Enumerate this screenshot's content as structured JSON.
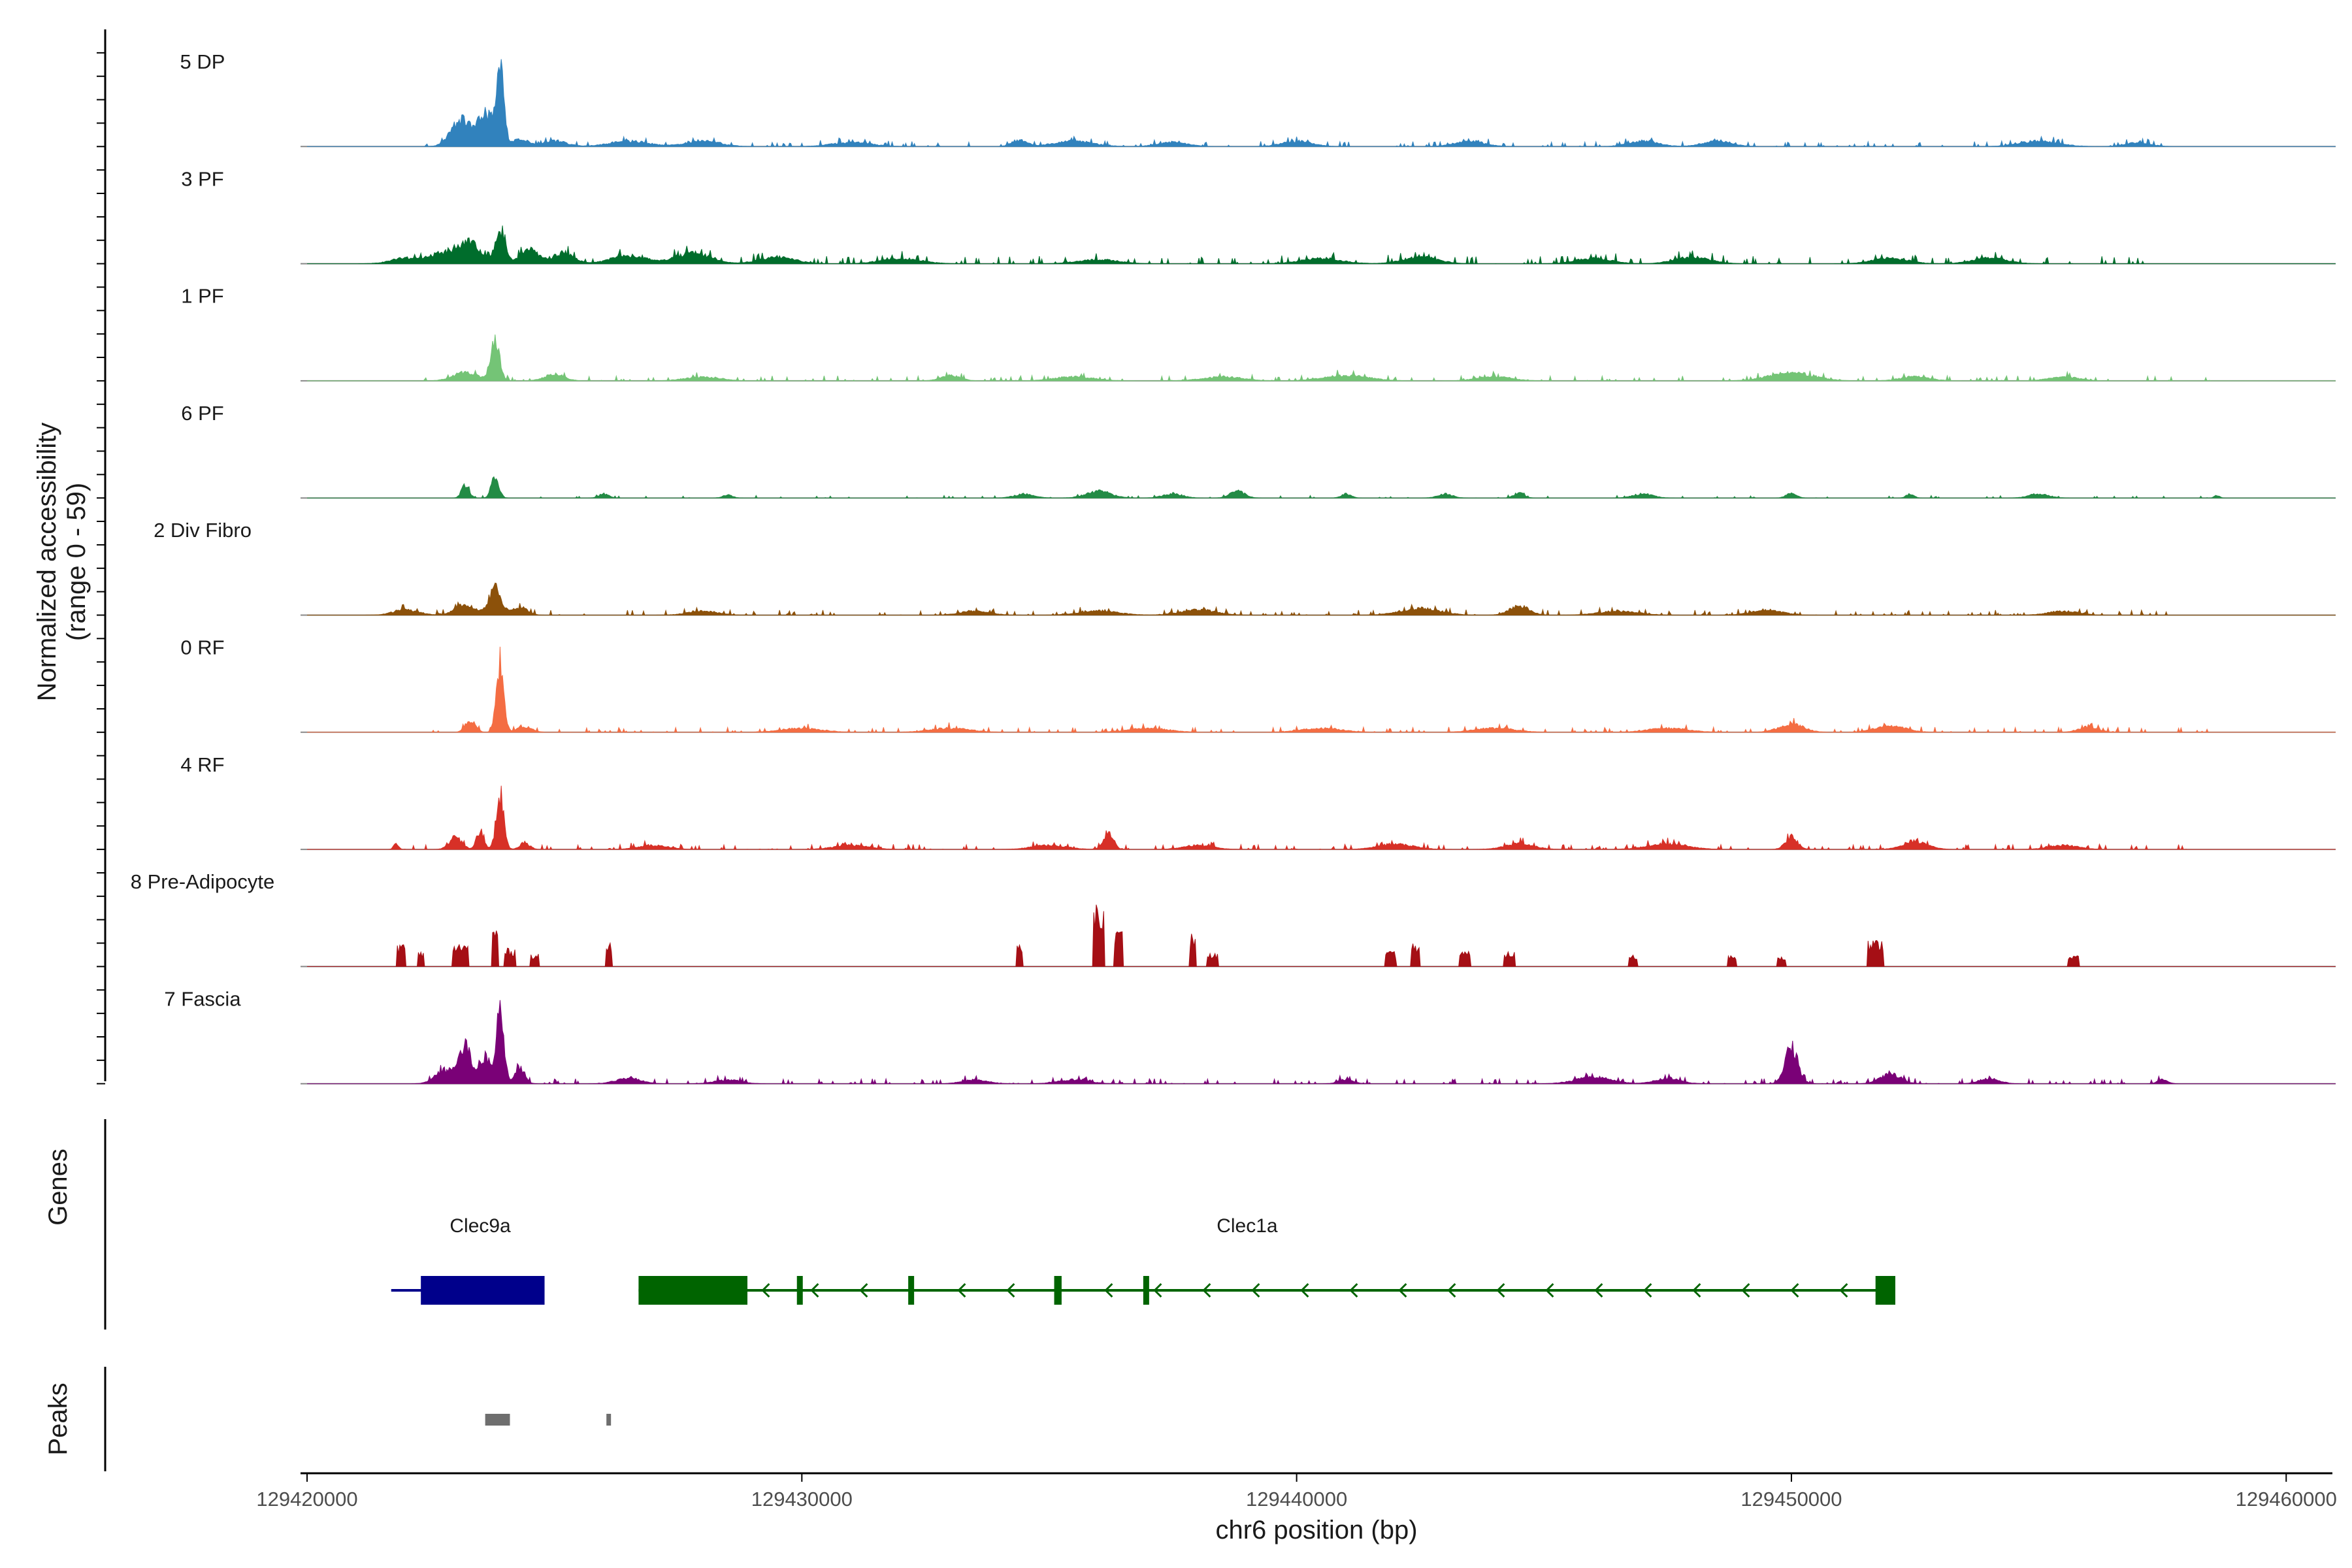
{
  "chart_data": {
    "type": "area",
    "ylabel_line1": "Normalized accessibility",
    "ylabel_line2": "(range 0 - 59)",
    "yrange": [
      0,
      59
    ],
    "xlabel": "chr6 position (bp)",
    "xlim": [
      129420000,
      129461000
    ],
    "xticks": [
      129420000,
      129430000,
      129440000,
      129450000,
      129460000
    ],
    "xtick_labels": [
      "129420000",
      "129430000",
      "129440000",
      "129450000",
      "129460000"
    ],
    "track_order": [
      "5 DP",
      "3 PF",
      "1 PF",
      "6 PF",
      "2 Div Fibro",
      "0 RF",
      "4 RF",
      "8 Pre-Adipocyte",
      "7 Fascia"
    ],
    "tracks": [
      {
        "name": "5 DP",
        "color": "#3182bd",
        "peaks": [
          [
            129423100,
            20,
            400
          ],
          [
            129423600,
            24,
            300
          ],
          [
            129423900,
            55,
            150
          ],
          [
            129424300,
            6,
            300
          ],
          [
            129425000,
            4,
            500
          ],
          [
            129426500,
            4,
            800
          ],
          [
            129428000,
            4,
            700
          ],
          [
            129431000,
            3,
            800
          ],
          [
            129434400,
            5,
            300
          ],
          [
            129435500,
            4,
            800
          ],
          [
            129437500,
            3,
            600
          ],
          [
            129440000,
            4,
            600
          ],
          [
            129443500,
            4,
            600
          ],
          [
            129447000,
            4,
            600
          ],
          [
            129448500,
            4,
            600
          ],
          [
            129455000,
            4,
            800
          ],
          [
            129457000,
            3,
            500
          ]
        ],
        "noise": 2,
        "noise_span": [
          129422300,
          129457600
        ]
      },
      {
        "name": "3 PF",
        "color": "#006d2c",
        "peaks": [
          [
            129422000,
            4,
            600
          ],
          [
            129422800,
            8,
            600
          ],
          [
            129423300,
            14,
            400
          ],
          [
            129423900,
            26,
            200
          ],
          [
            129424500,
            10,
            400
          ],
          [
            129425200,
            8,
            400
          ],
          [
            129426500,
            6,
            700
          ],
          [
            129427800,
            8,
            700
          ],
          [
            129429500,
            5,
            700
          ],
          [
            129432000,
            4,
            800
          ],
          [
            129436000,
            3,
            800
          ],
          [
            129440500,
            4,
            800
          ],
          [
            129442500,
            5,
            700
          ],
          [
            129446000,
            4,
            700
          ],
          [
            129448000,
            5,
            700
          ],
          [
            129452000,
            4,
            700
          ],
          [
            129454000,
            4,
            700
          ]
        ],
        "noise": 3,
        "noise_span": [
          129421800,
          129457100
        ]
      },
      {
        "name": "1 PF",
        "color": "#74c476",
        "peaks": [
          [
            129423200,
            6,
            500
          ],
          [
            129423800,
            28,
            180
          ],
          [
            129425000,
            5,
            400
          ],
          [
            129428000,
            3,
            700
          ],
          [
            129433000,
            4,
            400
          ],
          [
            129435500,
            3,
            800
          ],
          [
            129438500,
            3,
            800
          ],
          [
            129441000,
            4,
            900
          ],
          [
            129444000,
            3,
            700
          ],
          [
            129450000,
            6,
            900
          ],
          [
            129452500,
            3,
            600
          ],
          [
            129455500,
            3,
            600
          ]
        ],
        "noise": 2,
        "noise_span": [
          129422300,
          129458500
        ]
      },
      {
        "name": "6 PF",
        "color": "#238b45",
        "peaks": [
          [
            129423200,
            10,
            150
          ],
          [
            129423800,
            17,
            150
          ],
          [
            129426000,
            3,
            200
          ],
          [
            129428500,
            2,
            200
          ],
          [
            129434500,
            3,
            400
          ],
          [
            129436000,
            5,
            500
          ],
          [
            129437500,
            3,
            400
          ],
          [
            129438800,
            5,
            300
          ],
          [
            129441000,
            3,
            200
          ],
          [
            129443000,
            3,
            300
          ],
          [
            129444500,
            4,
            200
          ],
          [
            129447000,
            3,
            400
          ],
          [
            129450000,
            4,
            200
          ],
          [
            129452400,
            3,
            150
          ],
          [
            129455000,
            3,
            400
          ],
          [
            129458600,
            2,
            100
          ]
        ],
        "noise": 1,
        "noise_span": [
          129423000,
          129458700
        ],
        "sparse": true
      },
      {
        "name": "2 Div Fibro",
        "color": "#8c510a",
        "peaks": [
          [
            129422000,
            4,
            500
          ],
          [
            129423200,
            8,
            400
          ],
          [
            129423800,
            19,
            250
          ],
          [
            129424300,
            6,
            300
          ],
          [
            129428000,
            3,
            600
          ],
          [
            129433500,
            3,
            600
          ],
          [
            129436000,
            3,
            800
          ],
          [
            129438000,
            4,
            700
          ],
          [
            129442500,
            5,
            800
          ],
          [
            129444500,
            7,
            400
          ],
          [
            129446500,
            3,
            800
          ],
          [
            129449500,
            4,
            600
          ],
          [
            129455500,
            3,
            600
          ]
        ],
        "noise": 2,
        "noise_span": [
          129421800,
          129457800
        ]
      },
      {
        "name": "0 RF",
        "color": "#f46d43",
        "peaks": [
          [
            129423300,
            9,
            200
          ],
          [
            129423900,
            52,
            150
          ],
          [
            129424400,
            4,
            300
          ],
          [
            129430000,
            3,
            800
          ],
          [
            129433000,
            3,
            800
          ],
          [
            129437000,
            3,
            800
          ],
          [
            129440500,
            3,
            800
          ],
          [
            129444000,
            3,
            800
          ],
          [
            129447500,
            3,
            800
          ],
          [
            129450000,
            6,
            500
          ],
          [
            129452000,
            5,
            600
          ],
          [
            129456000,
            4,
            400
          ]
        ],
        "noise": 2,
        "noise_span": [
          129422300,
          129458500
        ]
      },
      {
        "name": "4 RF",
        "color": "#d73027",
        "peaks": [
          [
            129421800,
            4,
            100
          ],
          [
            129423000,
            9,
            250
          ],
          [
            129423500,
            13,
            150
          ],
          [
            129423900,
            42,
            150
          ],
          [
            129424400,
            5,
            200
          ],
          [
            129427000,
            3,
            600
          ],
          [
            129431000,
            3,
            700
          ],
          [
            129435000,
            3,
            700
          ],
          [
            129436200,
            11,
            200
          ],
          [
            129438000,
            3,
            600
          ],
          [
            129442000,
            4,
            700
          ],
          [
            129444500,
            4,
            600
          ],
          [
            129447500,
            4,
            800
          ],
          [
            129450000,
            9,
            250
          ],
          [
            129452500,
            6,
            500
          ],
          [
            129455500,
            3,
            600
          ]
        ],
        "noise": 2,
        "noise_span": [
          129421800,
          129458000
        ]
      },
      {
        "name": "8 Pre-Adipocyte",
        "color": "#a50f15",
        "peaks": [
          [
            129421900,
            14,
            150
          ],
          [
            129422300,
            9,
            100
          ],
          [
            129423100,
            14,
            250
          ],
          [
            129423800,
            24,
            120
          ],
          [
            129424100,
            11,
            200
          ],
          [
            129424600,
            8,
            150
          ],
          [
            129426100,
            14,
            120
          ],
          [
            129434400,
            14,
            100
          ],
          [
            129436000,
            40,
            180
          ],
          [
            129436400,
            22,
            150
          ],
          [
            129437900,
            20,
            100
          ],
          [
            129438300,
            8,
            200
          ],
          [
            129441900,
            9,
            200
          ],
          [
            129442400,
            14,
            150
          ],
          [
            129443400,
            9,
            200
          ],
          [
            129444300,
            9,
            200
          ],
          [
            129446800,
            7,
            150
          ],
          [
            129448800,
            7,
            150
          ],
          [
            129449800,
            7,
            150
          ],
          [
            129451700,
            16,
            250
          ],
          [
            129455700,
            7,
            200
          ]
        ],
        "noise": 0,
        "noise_span": [
          129421800,
          129458200
        ],
        "blocky": true
      },
      {
        "name": "7 Fascia",
        "color": "#7a0177",
        "peaks": [
          [
            129422800,
            10,
            400
          ],
          [
            129423200,
            28,
            250
          ],
          [
            129423600,
            20,
            200
          ],
          [
            129423900,
            59,
            150
          ],
          [
            129424300,
            12,
            200
          ],
          [
            129426500,
            4,
            500
          ],
          [
            129428500,
            3,
            500
          ],
          [
            129433500,
            3,
            500
          ],
          [
            129435500,
            3,
            600
          ],
          [
            129441000,
            3,
            300
          ],
          [
            129446000,
            5,
            700
          ],
          [
            129447500,
            4,
            500
          ],
          [
            129450000,
            28,
            250
          ],
          [
            129452000,
            7,
            400
          ],
          [
            129454000,
            4,
            400
          ],
          [
            129457500,
            3,
            200
          ]
        ],
        "noise": 2,
        "noise_span": [
          129422400,
          129457600
        ]
      }
    ]
  },
  "panels": {
    "genes_title": "Genes",
    "peaks_title": "Peaks"
  },
  "genes": [
    {
      "name": "Clec9a",
      "strand": "+",
      "color": "#00008b",
      "start": 129421700,
      "end": 129424800,
      "label_pos": 129423500,
      "exons": [
        [
          129422300,
          129424800
        ]
      ]
    },
    {
      "name": "Clec1a",
      "strand": "-",
      "color": "#006400",
      "start": 129426700,
      "end": 129452100,
      "label_pos": 129439000,
      "exons": [
        [
          129426700,
          129428900
        ],
        [
          129429900,
          129430000
        ],
        [
          129432150,
          129432250
        ],
        [
          129435100,
          129435250
        ],
        [
          129436900,
          129436980
        ],
        [
          129451700,
          129452100
        ]
      ]
    }
  ],
  "peaks": [
    {
      "start": 129423600,
      "end": 129424100
    },
    {
      "start": 129426050,
      "end": 129426120
    }
  ]
}
